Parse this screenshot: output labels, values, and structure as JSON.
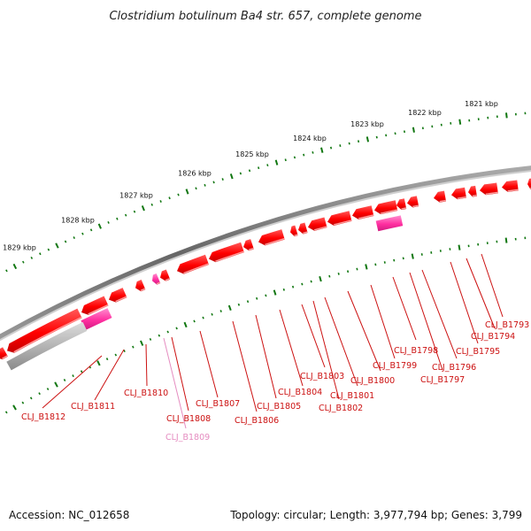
{
  "title": "Clostridium botulinum Ba4 str. 657, complete genome",
  "footer": {
    "accession": "Accession: NC_012658",
    "summary": "Topology: circular; Length: 3,977,794 bp; Genes: 3,799"
  },
  "colors": {
    "backbone": "#777777",
    "gene": "#ff0000",
    "gene_dark": "#cc0000",
    "gene_light": "#ff8080",
    "highlight": "#ff2fa0",
    "highlight_light": "#ff90cc",
    "grey_feature": "#aaaaaa",
    "ticks": "#117711",
    "label_red": "#cc1111",
    "label_pink": "#e58cc0"
  },
  "kbp_labels": [
    "1821 kbp",
    "1822 kbp",
    "1823 kbp",
    "1824 kbp",
    "1825 kbp",
    "1826 kbp",
    "1827 kbp",
    "1828 kbp",
    "1829 kbp"
  ],
  "gene_labels": [
    {
      "name": "CLJ_B1793",
      "style": "red"
    },
    {
      "name": "CLJ_B1794",
      "style": "red"
    },
    {
      "name": "CLJ_B1795",
      "style": "red"
    },
    {
      "name": "CLJ_B1796",
      "style": "red"
    },
    {
      "name": "CLJ_B1797",
      "style": "red"
    },
    {
      "name": "CLJ_B1798",
      "style": "red"
    },
    {
      "name": "CLJ_B1799",
      "style": "red"
    },
    {
      "name": "CLJ_B1800",
      "style": "red"
    },
    {
      "name": "CLJ_B1801",
      "style": "red"
    },
    {
      "name": "CLJ_B1802",
      "style": "red"
    },
    {
      "name": "CLJ_B1803",
      "style": "red"
    },
    {
      "name": "CLJ_B1804",
      "style": "red"
    },
    {
      "name": "CLJ_B1805",
      "style": "red"
    },
    {
      "name": "CLJ_B1806",
      "style": "red"
    },
    {
      "name": "CLJ_B1807",
      "style": "red"
    },
    {
      "name": "CLJ_B1808",
      "style": "red"
    },
    {
      "name": "CLJ_B1809",
      "style": "pink"
    },
    {
      "name": "CLJ_B1810",
      "style": "red"
    },
    {
      "name": "CLJ_B1811",
      "style": "red"
    },
    {
      "name": "CLJ_B1812",
      "style": "red"
    }
  ]
}
